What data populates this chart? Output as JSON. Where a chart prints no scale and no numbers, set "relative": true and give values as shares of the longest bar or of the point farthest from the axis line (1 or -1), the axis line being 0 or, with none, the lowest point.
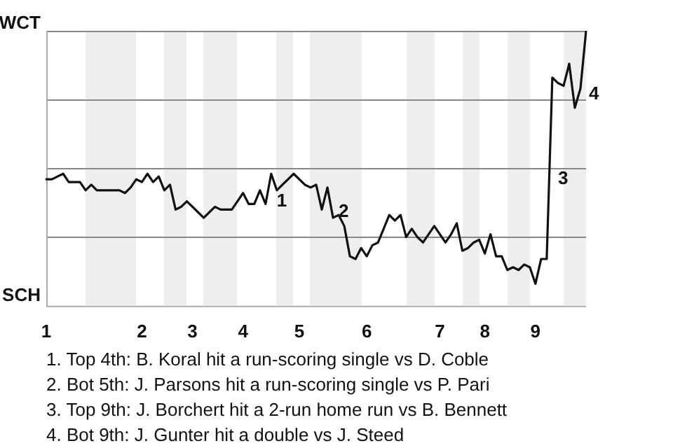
{
  "chart_data": {
    "type": "line",
    "relative": true,
    "categories": [
      "1",
      null,
      null,
      null,
      null,
      null,
      null,
      null,
      null,
      null,
      null,
      null,
      null,
      null,
      null,
      null,
      null,
      "2",
      null,
      null,
      null,
      null,
      null,
      null,
      null,
      null,
      "3",
      null,
      null,
      null,
      null,
      null,
      null,
      null,
      null,
      "4",
      null,
      null,
      null,
      null,
      null,
      null,
      null,
      null,
      null,
      "5",
      null,
      null,
      null,
      null,
      null,
      null,
      null,
      null,
      null,
      null,
      null,
      "6",
      null,
      null,
      null,
      null,
      null,
      null,
      null,
      null,
      null,
      null,
      null,
      null,
      "7",
      null,
      null,
      null,
      null,
      null,
      null,
      null,
      "8",
      null,
      null,
      null,
      null,
      null,
      null,
      null,
      null,
      "9",
      null,
      null,
      null,
      null,
      null,
      null,
      null,
      null,
      null
    ],
    "series": [
      {
        "color": "#111111",
        "values": [
          0.46,
          0.46,
          0.47,
          0.48,
          0.45,
          0.45,
          0.45,
          0.42,
          0.44,
          0.42,
          0.42,
          0.42,
          0.42,
          0.42,
          0.41,
          0.43,
          0.46,
          0.45,
          0.48,
          0.45,
          0.47,
          0.42,
          0.44,
          0.35,
          0.36,
          0.38,
          0.36,
          0.34,
          0.32,
          0.34,
          0.36,
          0.35,
          0.35,
          0.35,
          0.38,
          0.41,
          0.37,
          0.37,
          0.42,
          0.37,
          0.48,
          0.42,
          0.44,
          0.46,
          0.48,
          0.46,
          0.44,
          0.43,
          0.44,
          0.35,
          0.43,
          0.32,
          0.33,
          0.29,
          0.18,
          0.17,
          0.21,
          0.18,
          0.22,
          0.23,
          0.28,
          0.33,
          0.31,
          0.33,
          0.25,
          0.28,
          0.25,
          0.23,
          0.26,
          0.29,
          0.26,
          0.23,
          0.26,
          0.3,
          0.2,
          0.21,
          0.23,
          0.24,
          0.19,
          0.26,
          0.18,
          0.18,
          0.13,
          0.14,
          0.13,
          0.15,
          0.14,
          0.08,
          0.17,
          0.17,
          0.83,
          0.81,
          0.8,
          0.88,
          0.72,
          0.79,
          1
        ]
      }
    ],
    "grid": "y",
    "marker": "none",
    "line_style": "solid",
    "annotations": [
      "WCT",
      "SCH",
      "1",
      "2",
      "3",
      "4",
      "1. Top 4th: B. Koral hit a run-scoring single vs D. Coble",
      "2. Bot 5th: J. Parsons hit a run-scoring single vs P. Pari",
      "3. Top 9th: J. Borchert hit a 2-run home run vs B. Bennett",
      "4. Bot 9th: J. Gunter hit a double vs J. Steed"
    ]
  }
}
